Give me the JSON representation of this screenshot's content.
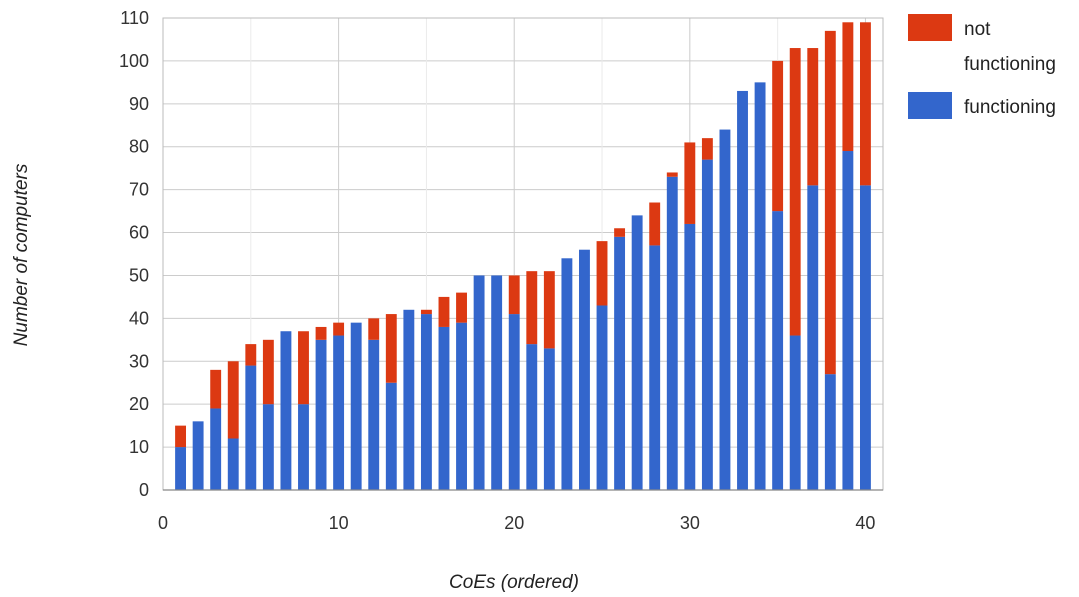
{
  "chart_data": {
    "type": "bar",
    "stacked": true,
    "xlabel": "CoEs (ordered)",
    "ylabel": "Number of computers",
    "xlim": [
      0,
      41
    ],
    "ylim": [
      0,
      110
    ],
    "xticks": [
      0,
      10,
      20,
      30,
      40
    ],
    "yticks": [
      0,
      10,
      20,
      30,
      40,
      50,
      60,
      70,
      80,
      90,
      100,
      110
    ],
    "grid": true,
    "legend_position": "top-right",
    "x": [
      1,
      2,
      3,
      4,
      5,
      6,
      7,
      8,
      9,
      10,
      11,
      12,
      13,
      14,
      15,
      16,
      17,
      18,
      19,
      20,
      21,
      22,
      23,
      24,
      25,
      26,
      27,
      28,
      29,
      30,
      31,
      32,
      33,
      34,
      35,
      36,
      37,
      38,
      39,
      40
    ],
    "series": [
      {
        "name": "functioning",
        "color": "#3366cc",
        "values": [
          10,
          16,
          19,
          12,
          29,
          20,
          37,
          20,
          35,
          36,
          39,
          35,
          25,
          42,
          41,
          38,
          39,
          50,
          50,
          41,
          34,
          33,
          54,
          56,
          43,
          59,
          64,
          57,
          73,
          62,
          77,
          84,
          93,
          95,
          65,
          36,
          71,
          27,
          79,
          71
        ]
      },
      {
        "name": "not functioning",
        "color": "#dc3912",
        "values": [
          5,
          0,
          9,
          18,
          5,
          15,
          0,
          17,
          3,
          3,
          0,
          5,
          16,
          0,
          1,
          7,
          7,
          0,
          0,
          9,
          17,
          18,
          0,
          0,
          15,
          2,
          0,
          10,
          1,
          19,
          5,
          0,
          0,
          0,
          35,
          67,
          32,
          80,
          30,
          38
        ]
      }
    ],
    "legend": [
      {
        "label_lines": [
          "not",
          "functioning"
        ],
        "color": "#dc3912"
      },
      {
        "label_lines": [
          "functioning"
        ],
        "color": "#3366cc"
      }
    ]
  }
}
